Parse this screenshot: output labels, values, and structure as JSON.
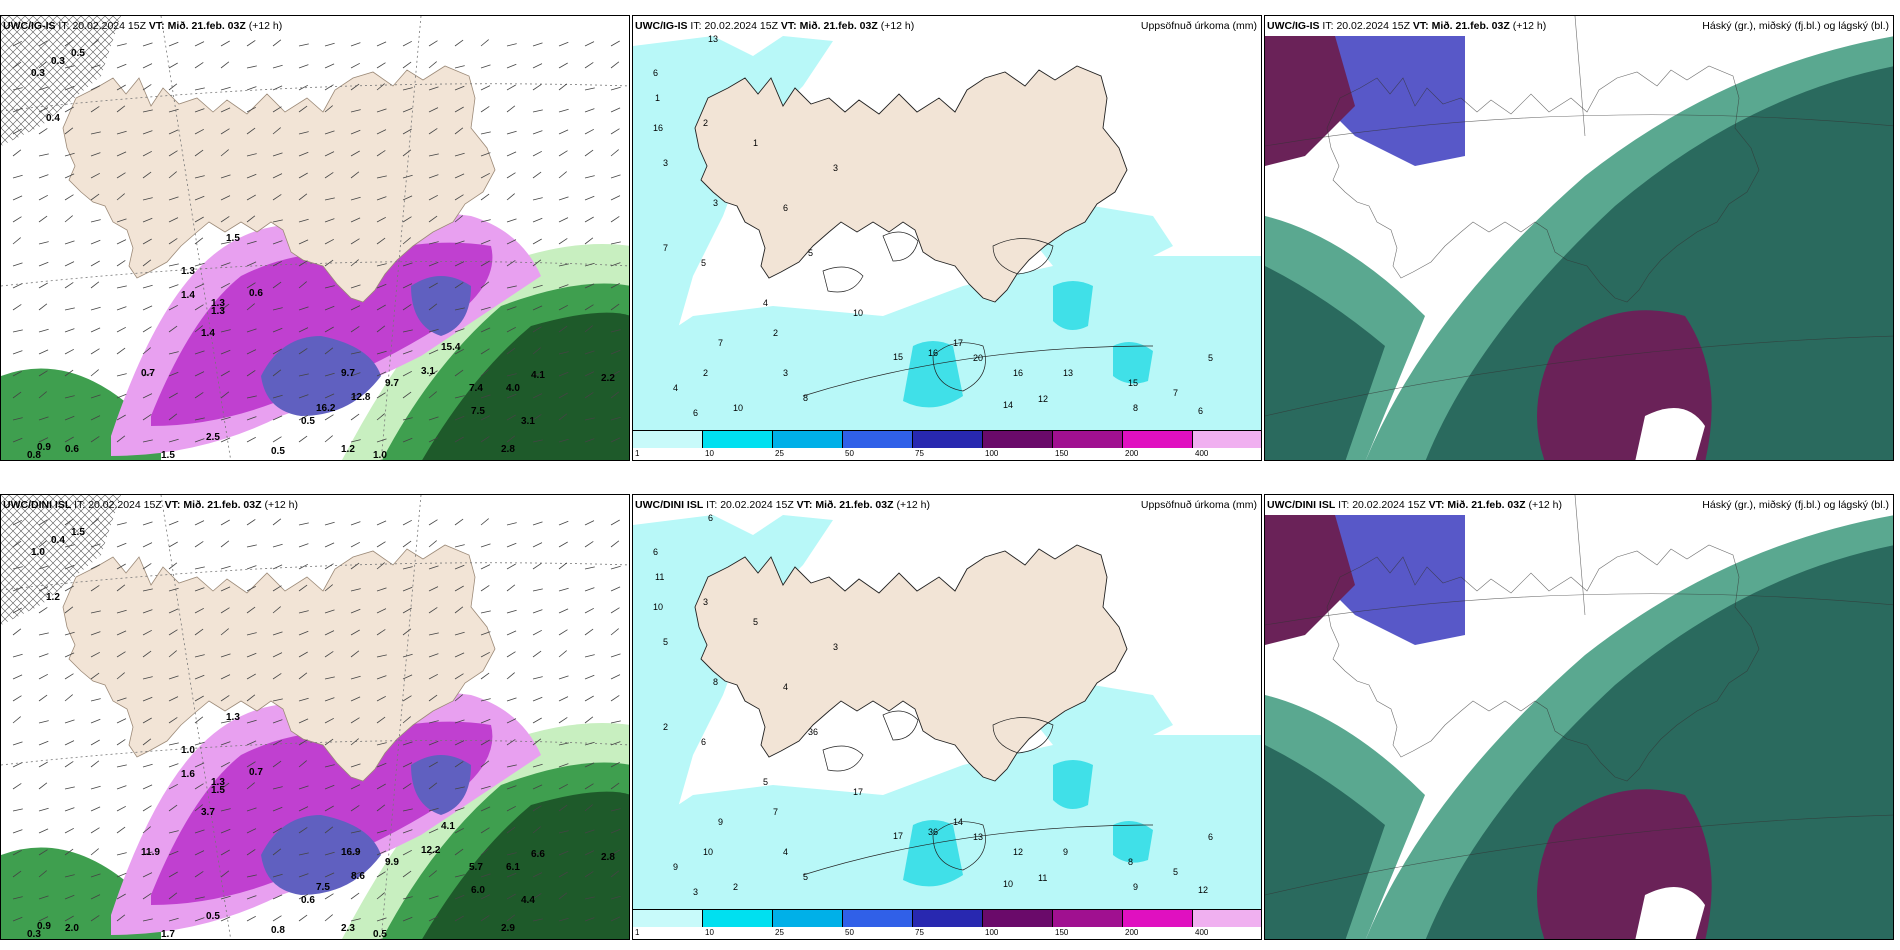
{
  "precip_levels": [
    "1",
    "10",
    "25",
    "50",
    "75",
    "100",
    "150",
    "200",
    "400"
  ],
  "precip_colors": [
    "#c8fafa",
    "#00e0f0",
    "#00b0e8",
    "#3060e8",
    "#2828b0",
    "#6a0a6a",
    "#a01090",
    "#e010c0",
    "#f0b0f0"
  ],
  "colors": {
    "land": "#f2e4d6",
    "sea": "#ffffff",
    "precip_light": "#b8f8f8",
    "precip_mid": "#40e0e8",
    "wind_green_dark": "#1e5a2a",
    "wind_green_mid": "#3f9f4f",
    "wind_green_light": "#c8efc0",
    "wind_purple": "#c040d0",
    "wind_purple_light": "#e8a0f0",
    "cloud_high": "#6a2258",
    "cloud_mid": "#5858c8",
    "cloud_low": "#2a6a5e",
    "cloud_low_light": "#5aa890"
  },
  "rows": [
    {
      "model": "UWC/IG-IS",
      "it_label": "IT:",
      "it_value": "20.02.2024 15Z",
      "vt_label": "VT:",
      "vt_value": "Mið. 21.feb. 03Z",
      "lead": "(+12 h)",
      "precip_title": "Uppsöfnuð úrkoma (mm)",
      "cloud_title": "Háský (gr.), miðský (fj.bl.) og lágský (bl.)",
      "wind_labels": [
        {
          "t": "0.3"
        },
        {
          "t": "0.3"
        },
        {
          "t": "0.5"
        },
        {
          "t": "0.4"
        },
        {
          "t": "1.5"
        },
        {
          "t": "1.3"
        },
        {
          "t": "1.4"
        },
        {
          "t": "1.3"
        },
        {
          "t": "1.4"
        },
        {
          "t": "0.7"
        },
        {
          "t": "9.7"
        },
        {
          "t": "12.8"
        },
        {
          "t": "9.7"
        },
        {
          "t": "16.2"
        },
        {
          "t": "3.1"
        },
        {
          "t": "15.4"
        },
        {
          "t": "7.4"
        },
        {
          "t": "7.5"
        },
        {
          "t": "4.0"
        },
        {
          "t": "4.1"
        },
        {
          "t": "3.1"
        },
        {
          "t": "2.2"
        },
        {
          "t": "2.8"
        },
        {
          "t": "1.2"
        },
        {
          "t": "1.0"
        },
        {
          "t": "0.9"
        },
        {
          "t": "0.6"
        },
        {
          "t": "0.8"
        },
        {
          "t": "1.5"
        },
        {
          "t": "0.5"
        },
        {
          "t": "0.5"
        },
        {
          "t": "2.5"
        },
        {
          "t": "1.3"
        },
        {
          "t": "0.6"
        }
      ],
      "precip_labels": [
        {
          "t": "13"
        },
        {
          "t": "6"
        },
        {
          "t": "1"
        },
        {
          "t": "16"
        },
        {
          "t": "3"
        },
        {
          "t": "2"
        },
        {
          "t": "7"
        },
        {
          "t": "5"
        },
        {
          "t": "3"
        },
        {
          "t": "1"
        },
        {
          "t": "3"
        },
        {
          "t": "6"
        },
        {
          "t": "4"
        },
        {
          "t": "2"
        },
        {
          "t": "7"
        },
        {
          "t": "5"
        },
        {
          "t": "10"
        },
        {
          "t": "15"
        },
        {
          "t": "16"
        },
        {
          "t": "17"
        },
        {
          "t": "20"
        },
        {
          "t": "16"
        },
        {
          "t": "12"
        },
        {
          "t": "13"
        },
        {
          "t": "15"
        },
        {
          "t": "14"
        },
        {
          "t": "8"
        },
        {
          "t": "7"
        },
        {
          "t": "6"
        },
        {
          "t": "5"
        },
        {
          "t": "3"
        },
        {
          "t": "10"
        },
        {
          "t": "8"
        },
        {
          "t": "6"
        },
        {
          "t": "4"
        },
        {
          "t": "2"
        }
      ]
    },
    {
      "model": "UWC/DINI ISL",
      "it_label": "IT:",
      "it_value": "20.02.2024 15Z",
      "vt_label": "VT:",
      "vt_value": "Mið. 21.feb. 03Z",
      "lead": "(+12 h)",
      "precip_title": "Uppsöfnuð úrkoma (mm)",
      "cloud_title": "Háský (gr.), miðský (fj.bl.) og lágský (bl.)",
      "wind_labels": [
        {
          "t": "1.0"
        },
        {
          "t": "0.4"
        },
        {
          "t": "1.5"
        },
        {
          "t": "1.2"
        },
        {
          "t": "1.3"
        },
        {
          "t": "1.0"
        },
        {
          "t": "1.6"
        },
        {
          "t": "1.5"
        },
        {
          "t": "3.7"
        },
        {
          "t": "11.9"
        },
        {
          "t": "16.9"
        },
        {
          "t": "8.6"
        },
        {
          "t": "9.9"
        },
        {
          "t": "7.5"
        },
        {
          "t": "12.2"
        },
        {
          "t": "4.1"
        },
        {
          "t": "5.7"
        },
        {
          "t": "6.0"
        },
        {
          "t": "6.1"
        },
        {
          "t": "6.6"
        },
        {
          "t": "4.4"
        },
        {
          "t": "2.8"
        },
        {
          "t": "2.9"
        },
        {
          "t": "2.3"
        },
        {
          "t": "0.5"
        },
        {
          "t": "0.9"
        },
        {
          "t": "2.0"
        },
        {
          "t": "0.3"
        },
        {
          "t": "1.7"
        },
        {
          "t": "0.8"
        },
        {
          "t": "0.6"
        },
        {
          "t": "0.5"
        },
        {
          "t": "1.3"
        },
        {
          "t": "0.7"
        }
      ],
      "precip_labels": [
        {
          "t": "6"
        },
        {
          "t": "6"
        },
        {
          "t": "11"
        },
        {
          "t": "10"
        },
        {
          "t": "5"
        },
        {
          "t": "3"
        },
        {
          "t": "2"
        },
        {
          "t": "6"
        },
        {
          "t": "8"
        },
        {
          "t": "5"
        },
        {
          "t": "3"
        },
        {
          "t": "4"
        },
        {
          "t": "5"
        },
        {
          "t": "7"
        },
        {
          "t": "9"
        },
        {
          "t": "36"
        },
        {
          "t": "17"
        },
        {
          "t": "17"
        },
        {
          "t": "36"
        },
        {
          "t": "14"
        },
        {
          "t": "13"
        },
        {
          "t": "12"
        },
        {
          "t": "11"
        },
        {
          "t": "9"
        },
        {
          "t": "8"
        },
        {
          "t": "10"
        },
        {
          "t": "9"
        },
        {
          "t": "5"
        },
        {
          "t": "12"
        },
        {
          "t": "6"
        },
        {
          "t": "4"
        },
        {
          "t": "2"
        },
        {
          "t": "5"
        },
        {
          "t": "3"
        },
        {
          "t": "9"
        },
        {
          "t": "10"
        }
      ]
    }
  ]
}
